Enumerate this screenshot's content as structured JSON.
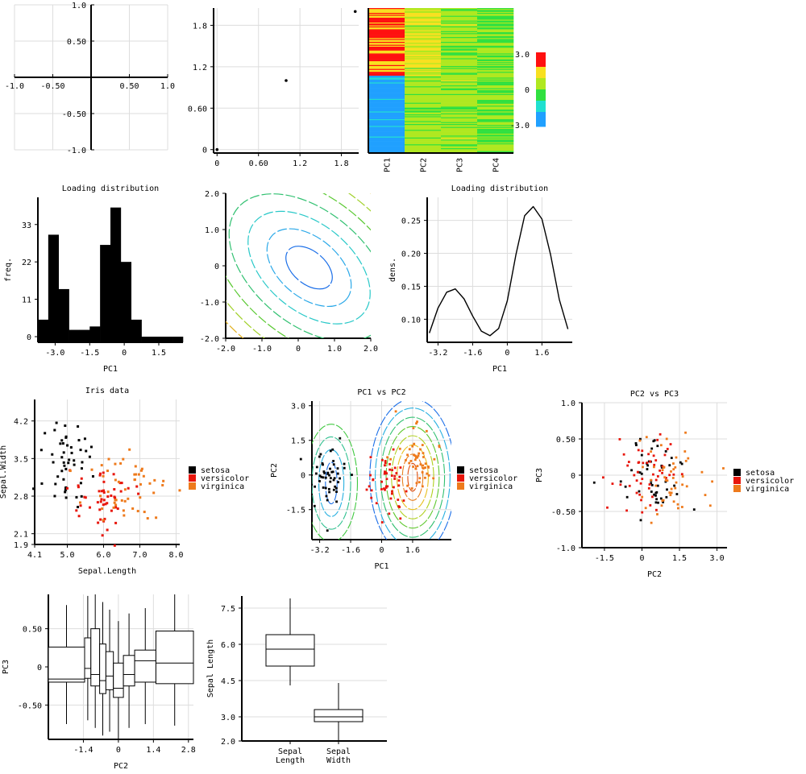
{
  "chart_data": [
    {
      "id": "p1",
      "type": "scatter",
      "title": "",
      "xlabel": "",
      "ylabel": "",
      "xlim": [
        -1.0,
        1.0
      ],
      "ylim": [
        -1.0,
        1.0
      ],
      "xticks": [
        "-1.0",
        "-0.50",
        "0.50",
        "1.0"
      ],
      "yticks": [
        "1.0",
        "0.50",
        "-0.50",
        "-1.0"
      ],
      "points": []
    },
    {
      "id": "p2",
      "type": "scatter",
      "title": "",
      "xlabel": "",
      "ylabel": "",
      "xlim": [
        0,
        2.0
      ],
      "ylim": [
        0,
        2.0
      ],
      "xticks": [
        "0",
        "0.60",
        "1.2",
        "1.8"
      ],
      "yticks": [
        "1.8",
        "1.2",
        "0.60",
        "0"
      ],
      "points": [
        [
          0.0,
          0.0
        ],
        [
          1.0,
          1.0
        ],
        [
          2.0,
          2.0
        ]
      ]
    },
    {
      "id": "p3",
      "type": "heatmap",
      "title": "",
      "categories": [
        "PC1",
        "PC2",
        "PC3",
        "PC4"
      ],
      "colorbar_ticks": [
        "3.0",
        "0",
        "-3.0"
      ],
      "value_range": [
        -3.0,
        3.0
      ]
    },
    {
      "id": "p4",
      "type": "bar",
      "title": "Loading distribution",
      "xlabel": "PC1",
      "ylabel": "freq.",
      "bin_edges": [
        -3.75,
        -3.3,
        -2.85,
        -2.4,
        -1.95,
        -1.5,
        -1.05,
        -0.6,
        -0.15,
        0.3,
        0.75,
        1.2,
        1.65,
        2.1,
        2.55
      ],
      "values": [
        5,
        30,
        14,
        2,
        2,
        3,
        27,
        38,
        22,
        5,
        0,
        0,
        0,
        0
      ],
      "xticks": [
        "-3.0",
        "-1.5",
        "0",
        "1.5"
      ],
      "yticks": [
        "33",
        "22",
        "11",
        "0"
      ],
      "ylim": [
        0,
        41
      ]
    },
    {
      "id": "p5",
      "type": "contour",
      "title": "",
      "xlabel": "",
      "ylabel": "",
      "xlim": [
        -2.0,
        2.0
      ],
      "ylim": [
        -2.0,
        2.0
      ],
      "xticks": [
        "-2.0",
        "-1.0",
        "0",
        "1.0",
        "2.0"
      ],
      "yticks": [
        "2.0",
        "1.0",
        "0",
        "-1.0",
        "-2.0"
      ]
    },
    {
      "id": "p6",
      "type": "line",
      "title": "Loading distribution",
      "xlabel": "PC1",
      "ylabel": "dens.",
      "x": [
        -3.6,
        -3.2,
        -2.8,
        -2.4,
        -2.0,
        -1.6,
        -1.2,
        -0.8,
        -0.4,
        0.0,
        0.4,
        0.8,
        1.2,
        1.6,
        2.0,
        2.4,
        2.8
      ],
      "y": [
        0.079,
        0.117,
        0.141,
        0.146,
        0.131,
        0.105,
        0.082,
        0.075,
        0.086,
        0.128,
        0.198,
        0.257,
        0.271,
        0.252,
        0.198,
        0.13,
        0.085
      ],
      "xticks": [
        "-3.2",
        "-1.6",
        "0",
        "1.6"
      ],
      "yticks": [
        "0.25",
        "0.20",
        "0.15",
        "0.10"
      ],
      "ylim": [
        0.065,
        0.285
      ]
    },
    {
      "id": "p7",
      "type": "scatter",
      "title": "Iris data",
      "xlabel": "Sepal.Length",
      "ylabel": "Sepal.Width",
      "xlim": [
        4.1,
        8.1
      ],
      "ylim": [
        1.9,
        4.6
      ],
      "xticks": [
        "4.1",
        "5.0",
        "6.0",
        "7.0",
        "8.0"
      ],
      "yticks": [
        "4.2",
        "3.5",
        "2.8",
        "2.1",
        "1.9"
      ],
      "legend": [
        "setosa",
        "versicolor",
        "virginica"
      ],
      "legend_position": "right"
    },
    {
      "id": "p8",
      "type": "scatter",
      "title": "PC1 vs PC2",
      "xlabel": "PC1",
      "ylabel": "PC2",
      "xlim": [
        -3.6,
        3.6
      ],
      "ylim": [
        -2.8,
        3.2
      ],
      "xticks": [
        "-3.2",
        "-1.6",
        "0",
        "1.6"
      ],
      "yticks": [
        "3.0",
        "1.5",
        "0",
        "-1.5"
      ],
      "legend": [
        "setosa",
        "versicolor",
        "virginica"
      ],
      "legend_position": "right"
    },
    {
      "id": "p9",
      "type": "scatter",
      "title": "PC2 vs PC3",
      "xlabel": "PC2",
      "ylabel": "PC3",
      "xlim": [
        -2.4,
        3.4
      ],
      "ylim": [
        -1.0,
        1.0
      ],
      "xticks": [
        "-1.5",
        "0",
        "1.5",
        "3.0"
      ],
      "yticks": [
        "1.0",
        "0.50",
        "0",
        "-0.50",
        "-1.0"
      ],
      "legend": [
        "setosa",
        "versicolor",
        "virginica"
      ],
      "legend_position": "right"
    },
    {
      "id": "p10",
      "type": "box",
      "title": "",
      "xlabel": "PC2",
      "ylabel": "PC3",
      "xlim": [
        -2.8,
        3.0
      ],
      "ylim": [
        -0.95,
        0.95
      ],
      "xticks": [
        "-1.4",
        "0",
        "1.4",
        "2.8"
      ],
      "yticks": [
        "0.50",
        "0",
        "-0.50"
      ]
    },
    {
      "id": "p11",
      "type": "box",
      "title": "",
      "xlabel": "",
      "ylabel": "Sepal Length",
      "categories": [
        "Sepal\nLength",
        "Sepal\nWidth"
      ],
      "ylim": [
        2.0,
        8.0
      ],
      "yticks": [
        "7.5",
        "6.0",
        "4.5",
        "3.0",
        "2.0"
      ],
      "boxes": [
        {
          "min": 4.3,
          "q1": 5.1,
          "median": 5.8,
          "q3": 6.4,
          "max": 7.9
        },
        {
          "min": 2.0,
          "q1": 2.8,
          "median": 3.0,
          "q3": 3.3,
          "max": 4.4
        }
      ]
    }
  ],
  "colors": {
    "setosa": "#000000",
    "versicolor": "#e8160c",
    "virginica": "#ee7a1c",
    "grid": "#dddddd",
    "axis": "#000000"
  }
}
